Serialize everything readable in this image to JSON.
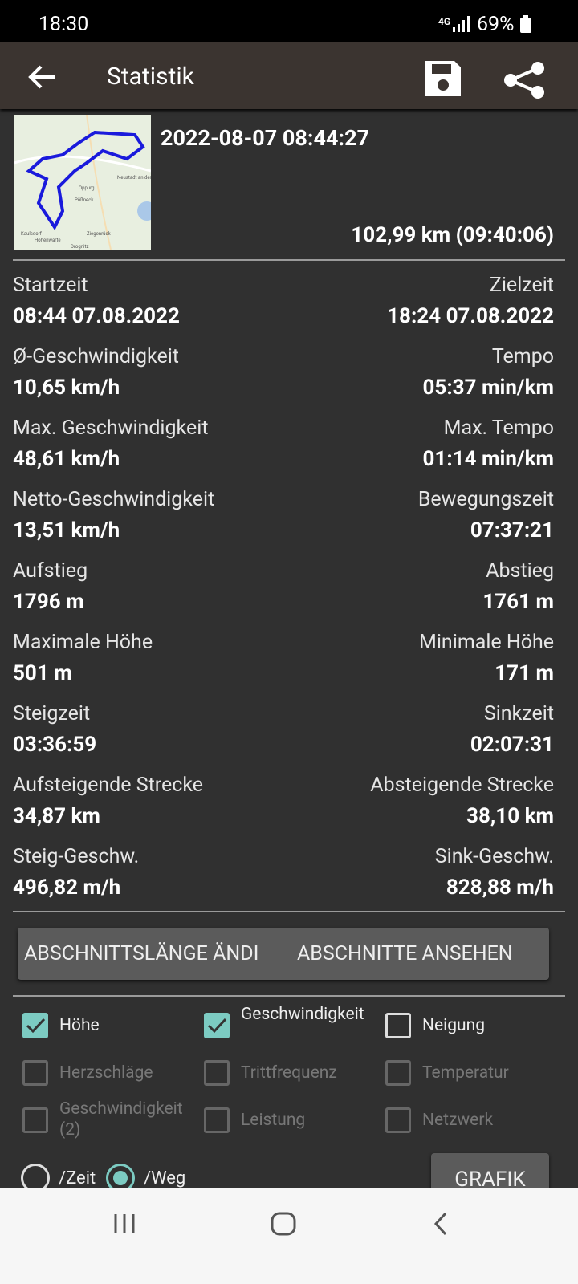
{
  "status_bar": {
    "time": "18:30",
    "network": "4G",
    "battery": "69%"
  },
  "app_bar": {
    "title": "Statistik"
  },
  "track": {
    "date": "2022-08-07 08:44:27",
    "summary": "102,99 km (09:40:06)",
    "map_labels": [
      "Oppurg",
      "Pößneck",
      "Neustadt an der Orla",
      "Ziegenrück",
      "Kaulsdorf",
      "Hohenwarte",
      "Drognitz"
    ]
  },
  "stats": [
    {
      "left_label": "Startzeit",
      "left_value": "08:44 07.08.2022",
      "right_label": "Zielzeit",
      "right_value": "18:24 07.08.2022"
    },
    {
      "left_label": "Ø-Geschwindigkeit",
      "left_value": "10,65 km/h",
      "right_label": "Tempo",
      "right_value": "05:37 min/km"
    },
    {
      "left_label": "Max. Geschwindigkeit",
      "left_value": "48,61 km/h",
      "right_label": "Max. Tempo",
      "right_value": "01:14 min/km"
    },
    {
      "left_label": "Netto-Geschwindigkeit",
      "left_value": "13,51 km/h",
      "right_label": "Bewegungszeit",
      "right_value": "07:37:21"
    },
    {
      "left_label": "Aufstieg",
      "left_value": "1796 m",
      "right_label": "Abstieg",
      "right_value": "1761 m"
    },
    {
      "left_label": "Maximale Höhe",
      "left_value": "501 m",
      "right_label": "Minimale Höhe",
      "right_value": "171 m"
    },
    {
      "left_label": "Steigzeit",
      "left_value": "03:36:59",
      "right_label": "Sinkzeit",
      "right_value": "02:07:31"
    },
    {
      "left_label": "Aufsteigende Strecke",
      "left_value": "34,87 km",
      "right_label": "Absteigende Strecke",
      "right_value": "38,10 km"
    },
    {
      "left_label": "Steig-Geschw.",
      "left_value": "496,82 m/h",
      "right_label": "Sink-Geschw.",
      "right_value": "828,88 m/h"
    }
  ],
  "buttons": [
    "ABSCHNITTSLÄNGE ÄNDI",
    "ABSCHNITTE ANSEHEN"
  ],
  "checkboxes": [
    {
      "label": "Höhe",
      "checked": true,
      "enabled": true
    },
    {
      "label": "Geschwindigkeit",
      "checked": true,
      "enabled": true
    },
    {
      "label": "Neigung",
      "checked": false,
      "enabled": true
    },
    {
      "label": "Herzschläge",
      "checked": false,
      "enabled": false
    },
    {
      "label": "Trittfrequenz",
      "checked": false,
      "enabled": false
    },
    {
      "label": "Temperatur",
      "checked": false,
      "enabled": false
    },
    {
      "label": "Geschwindigkeit (2)",
      "checked": false,
      "enabled": false
    },
    {
      "label": "Leistung",
      "checked": false,
      "enabled": false
    },
    {
      "label": "Netzwerk",
      "checked": false,
      "enabled": false
    }
  ],
  "radios": [
    {
      "label": "/Zeit",
      "selected": false
    },
    {
      "label": "/Weg",
      "selected": true
    }
  ],
  "graph_button": "GRAFIK"
}
